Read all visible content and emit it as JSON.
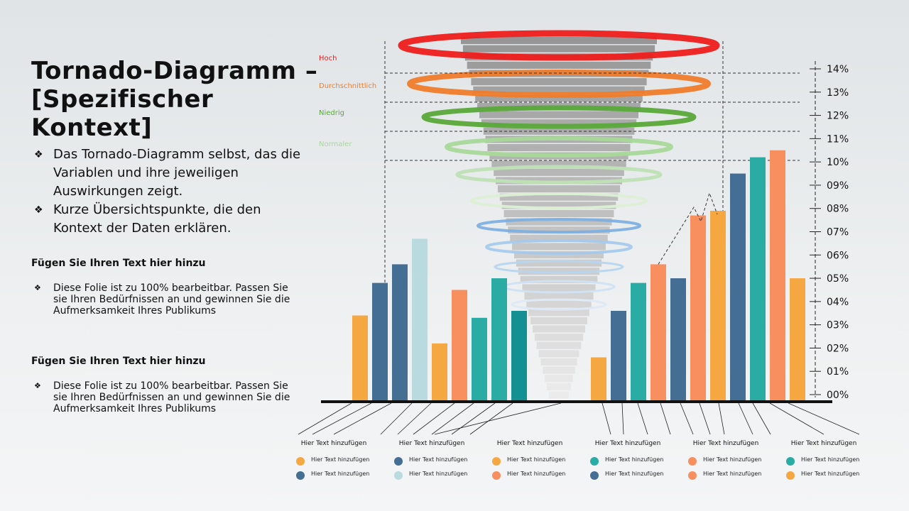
{
  "slide": {
    "title_line1": "Tornado-Diagramm –",
    "title_line2": "[Spezifischer Kontext]",
    "bullets": [
      "Das Tornado-Diagramm selbst, das die Variablen und ihre jeweiligen Auswirkungen zeigt.",
      "Kurze Übersichtspunkte, die den Kontext der Daten erklären."
    ],
    "sections": [
      {
        "heading": "Fügen Sie Ihren Text hier hinzu",
        "text": "Diese Folie ist zu 100% bearbeitbar. Passen Sie sie Ihren Bedürfnissen an und gewinnen Sie die Aufmerksamkeit Ihres Publikums"
      },
      {
        "heading": "Fügen Sie Ihren Text hier hinzu",
        "text": "Diese Folie ist zu 100% bearbeitbar. Passen Sie sie Ihren Bedürfnissen an und gewinnen Sie die Aufmerksamkeit Ihres Publikums"
      }
    ]
  },
  "colors": {
    "orange": "#f5a742",
    "blue": "#446e93",
    "lightblue": "#b9dbe0",
    "salmon": "#f78f5f",
    "teal": "#2aaba3",
    "darkteal": "#149092"
  },
  "chart_data": {
    "type": "bar",
    "ylim": [
      0,
      14
    ],
    "y_ticks": [
      "00%",
      "01%",
      "02%",
      "03%",
      "04%",
      "05%",
      "06%",
      "07%",
      "08%",
      "09%",
      "10%",
      "11%",
      "12%",
      "13%",
      "14%"
    ],
    "bars_left": [
      {
        "value": 3.4,
        "color": "orange"
      },
      {
        "value": 4.8,
        "color": "blue"
      },
      {
        "value": 5.6,
        "color": "blue"
      },
      {
        "value": 6.7,
        "color": "lightblue"
      },
      {
        "value": 2.2,
        "color": "orange"
      },
      {
        "value": 4.5,
        "color": "salmon"
      },
      {
        "value": 3.3,
        "color": "teal"
      },
      {
        "value": 5.0,
        "color": "teal"
      },
      {
        "value": 3.6,
        "color": "darkteal"
      }
    ],
    "bars_right": [
      {
        "value": 1.6,
        "color": "orange"
      },
      {
        "value": 3.6,
        "color": "blue"
      },
      {
        "value": 4.8,
        "color": "teal"
      },
      {
        "value": 5.6,
        "color": "salmon"
      },
      {
        "value": 5.0,
        "color": "blue"
      },
      {
        "value": 7.7,
        "color": "salmon"
      },
      {
        "value": 7.9,
        "color": "orange"
      },
      {
        "value": 9.5,
        "color": "blue"
      },
      {
        "value": 10.2,
        "color": "teal"
      },
      {
        "value": 10.5,
        "color": "salmon"
      },
      {
        "value": 5.0,
        "color": "orange"
      }
    ],
    "levels": [
      {
        "label": "Hoch",
        "color": "#ee1c1c"
      },
      {
        "label": "Durchschnittlich",
        "color": "#f07c2c"
      },
      {
        "label": "Niedrig",
        "color": "#5aa83a"
      },
      {
        "label": "Normaler",
        "color": "#a8d89a"
      }
    ],
    "categories": [
      "Hier Text hinzufügen",
      "Hier Text hinzufügen",
      "Hier Text hinzufügen",
      "Hier Text hinzufügen",
      "Hier Text hinzufügen",
      "Hier Text hinzufügen"
    ],
    "legend": [
      [
        {
          "label": "Hier Text hinzufügen",
          "color": "orange"
        },
        {
          "label": "Hier Text hinzufügen",
          "color": "blue"
        }
      ],
      [
        {
          "label": "Hier Text hinzufügen",
          "color": "blue"
        },
        {
          "label": "Hier Text hinzufügen",
          "color": "lightblue"
        }
      ],
      [
        {
          "label": "Hier Text hinzufügen",
          "color": "orange"
        },
        {
          "label": "Hier Text hinzufügen",
          "color": "salmon"
        }
      ],
      [
        {
          "label": "Hier Text hinzufügen",
          "color": "teal"
        },
        {
          "label": "Hier Text hinzufügen",
          "color": "blue"
        }
      ],
      [
        {
          "label": "Hier Text hinzufügen",
          "color": "salmon"
        },
        {
          "label": "Hier Text hinzufügen",
          "color": "salmon"
        }
      ],
      [
        {
          "label": "Hier Text hinzufügen",
          "color": "teal"
        },
        {
          "label": "Hier Text hinzufügen",
          "color": "orange"
        }
      ]
    ]
  }
}
